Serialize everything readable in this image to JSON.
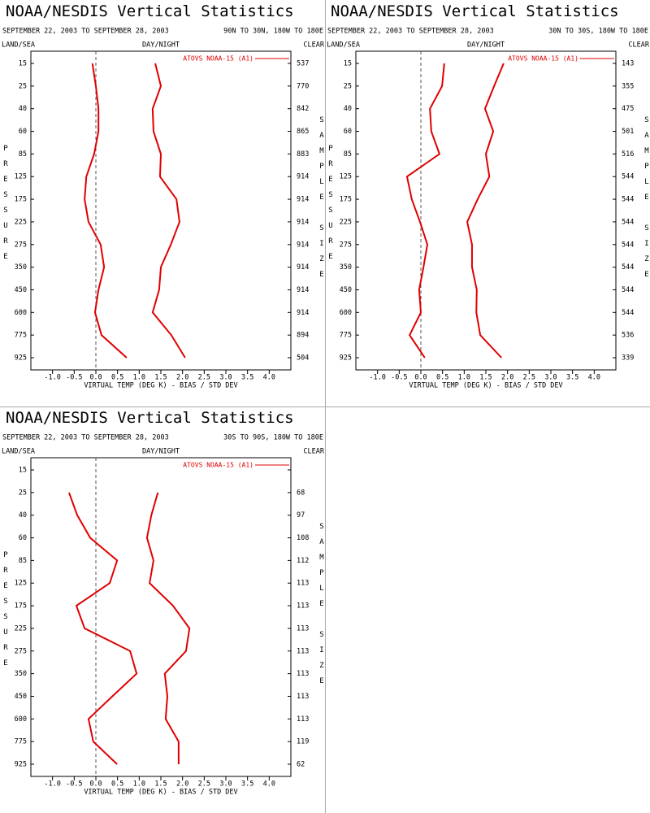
{
  "chart_data": [
    {
      "type": "line",
      "title": "NOAA/NESDIS Vertical Statistics",
      "subtitle": "SEPTEMBER 22, 2003 TO SEPTEMBER 28, 2003",
      "region": "90N TO 30N, 180W TO 180E",
      "left_label": "LAND/SEA",
      "center_label": "DAY/NIGHT",
      "right_label": "CLEAR",
      "y_label": "PRESSURE",
      "y2_label": "SAMPLE SIZE",
      "x_label": "VIRTUAL TEMP (DEG K) - BIAS / STD DEV",
      "legend": "ATOVS NOAA-15 (A1)",
      "categories": [
        15,
        25,
        40,
        60,
        85,
        125,
        175,
        225,
        275,
        350,
        450,
        600,
        775,
        925
      ],
      "sample_size": [
        537,
        770,
        842,
        865,
        883,
        914,
        914,
        914,
        914,
        914,
        914,
        914,
        894,
        504
      ],
      "series": [
        {
          "color": "#e00000",
          "values": [
            -0.08,
            0.0,
            0.06,
            0.06,
            -0.04,
            -0.22,
            -0.26,
            -0.17,
            0.11,
            0.19,
            0.06,
            -0.02,
            0.13,
            0.71
          ]
        },
        {
          "color": "#e00000",
          "values": [
            1.37,
            1.5,
            1.31,
            1.33,
            1.5,
            1.48,
            1.86,
            1.93,
            1.73,
            1.5,
            1.46,
            1.31,
            1.74,
            2.06
          ]
        }
      ],
      "xlim": [
        -1.5,
        4.5
      ],
      "xticks": [
        {
          "value": -1,
          "label": "-1.0"
        },
        {
          "value": -0.5,
          "label": "-0.5"
        },
        {
          "value": 0,
          "label": "0.0"
        },
        {
          "value": 0.5,
          "label": "0.5"
        },
        {
          "value": 1,
          "label": "1.0"
        },
        {
          "value": 1.5,
          "label": "1.5"
        },
        {
          "value": 2,
          "label": "2.0"
        },
        {
          "value": 2.5,
          "label": "2.5"
        },
        {
          "value": 3,
          "label": "3.0"
        },
        {
          "value": 3.5,
          "label": "3.5"
        },
        {
          "value": 4,
          "label": "4.0"
        }
      ]
    },
    {
      "type": "line",
      "title": "NOAA/NESDIS Vertical Statistics",
      "subtitle": "SEPTEMBER 22, 2003 TO SEPTEMBER 28, 2003",
      "region": "30N TO 30S, 180W TO 180E",
      "left_label": "LAND/SEA",
      "center_label": "DAY/NIGHT",
      "right_label": "CLEAR",
      "y_label": "PRESSURE",
      "y2_label": "SAMPLE SIZE",
      "x_label": "VIRTUAL TEMP (DEG K) - BIAS / STD DEV",
      "legend": "ATOVS NOAA-15 (A1)",
      "categories": [
        15,
        25,
        40,
        60,
        85,
        125,
        175,
        225,
        275,
        350,
        450,
        600,
        775,
        925
      ],
      "sample_size": [
        143,
        355,
        475,
        501,
        516,
        544,
        544,
        544,
        544,
        544,
        544,
        544,
        536,
        339
      ],
      "series": [
        {
          "color": "#e00000",
          "values": [
            0.54,
            0.49,
            0.21,
            0.24,
            0.43,
            -0.32,
            -0.21,
            -0.02,
            0.15,
            0.06,
            -0.04,
            0.0,
            -0.26,
            0.09
          ]
        },
        {
          "color": "#e00000",
          "values": [
            1.91,
            1.69,
            1.48,
            1.67,
            1.5,
            1.58,
            1.31,
            1.07,
            1.18,
            1.18,
            1.29,
            1.28,
            1.37,
            1.86
          ]
        }
      ],
      "xlim": [
        -1.5,
        4.5
      ],
      "xticks": [
        {
          "value": -1,
          "label": "-1.0"
        },
        {
          "value": -0.5,
          "label": "-0.5"
        },
        {
          "value": 0,
          "label": "0.0"
        },
        {
          "value": 0.5,
          "label": "0.5"
        },
        {
          "value": 1,
          "label": "1.0"
        },
        {
          "value": 1.5,
          "label": "1.5"
        },
        {
          "value": 2,
          "label": "2.0"
        },
        {
          "value": 2.5,
          "label": "2.5"
        },
        {
          "value": 3,
          "label": "3.0"
        },
        {
          "value": 3.5,
          "label": "3.5"
        },
        {
          "value": 4,
          "label": "4.0"
        }
      ]
    },
    {
      "type": "line",
      "title": "NOAA/NESDIS Vertical Statistics",
      "subtitle": "SEPTEMBER 22, 2003 TO SEPTEMBER 28, 2003",
      "region": "30S TO 90S, 180W TO 180E",
      "left_label": "LAND/SEA",
      "center_label": "DAY/NIGHT",
      "right_label": "CLEAR",
      "y_label": "PRESSURE",
      "y2_label": "SAMPLE SIZE",
      "x_label": "VIRTUAL TEMP (DEG K) - BIAS / STD DEV",
      "legend": "ATOVS NOAA-15 (A1)",
      "categories": [
        15,
        25,
        40,
        60,
        85,
        125,
        175,
        225,
        275,
        350,
        450,
        600,
        775,
        925
      ],
      "sample_size": [
        null,
        68,
        97,
        108,
        112,
        113,
        113,
        113,
        113,
        113,
        113,
        113,
        119,
        62
      ],
      "series": [
        {
          "color": "#e00000",
          "values": [
            null,
            -0.62,
            -0.43,
            -0.13,
            0.49,
            0.32,
            -0.45,
            -0.26,
            0.79,
            0.94,
            0.38,
            -0.17,
            -0.06,
            0.49
          ]
        },
        {
          "color": "#e00000",
          "values": [
            null,
            1.43,
            1.28,
            1.18,
            1.33,
            1.24,
            1.78,
            2.16,
            2.08,
            1.59,
            1.65,
            1.61,
            1.91,
            1.91
          ]
        }
      ],
      "xlim": [
        -1.5,
        4.5
      ],
      "xticks": [
        {
          "value": -1,
          "label": "-1.0"
        },
        {
          "value": -0.5,
          "label": "-0.5"
        },
        {
          "value": 0,
          "label": "0.0"
        },
        {
          "value": 0.5,
          "label": "0.5"
        },
        {
          "value": 1,
          "label": "1.0"
        },
        {
          "value": 1.5,
          "label": "1.5"
        },
        {
          "value": 2,
          "label": "2.0"
        },
        {
          "value": 2.5,
          "label": "2.5"
        },
        {
          "value": 3,
          "label": "3.0"
        },
        {
          "value": 3.5,
          "label": "3.5"
        },
        {
          "value": 4,
          "label": "4.0"
        }
      ]
    }
  ]
}
